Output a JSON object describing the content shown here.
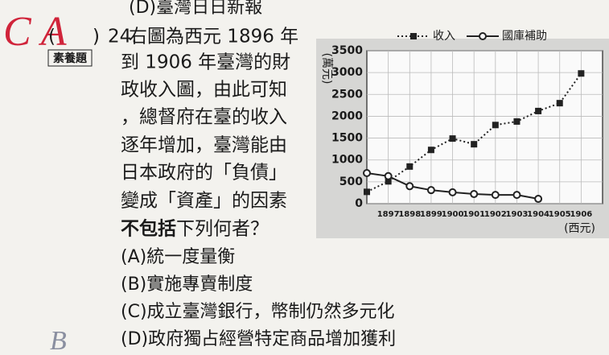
{
  "header": {
    "prev_option": "(D)臺灣日日新報"
  },
  "handwriting": {
    "answer": "C A",
    "note": "B"
  },
  "question": {
    "bracket": "(　　)",
    "number": "24.",
    "tag": "素養題",
    "lines": [
      "右圖為西元 1896 年",
      "到 1906 年臺灣的財",
      "政收入圖，由此可知",
      "，總督府在臺的收入",
      "逐年增加，臺灣能由",
      "日本政府的「負債」",
      "變成「資產」的因素"
    ],
    "emphasis": "不包括",
    "rest": "下列何者？",
    "options": [
      "(A)統一度量衡",
      "(B)實施專賣制度",
      "(C)成立臺灣銀行，幣制仍然多元化",
      "(D)政府獨占經營特定商品增加獲利"
    ]
  },
  "chart_data": {
    "type": "line",
    "y_label": "(萬元)",
    "x_label": "(西元)",
    "x": [
      1896,
      1897,
      1898,
      1899,
      1900,
      1901,
      1902,
      1903,
      1904,
      1905,
      1906
    ],
    "series": [
      {
        "name": "收入",
        "color": "#222222",
        "dash": true,
        "marker": "square",
        "values": [
          270,
          510,
          850,
          1230,
          1490,
          1360,
          1800,
          1880,
          2120,
          2300,
          2980
        ]
      },
      {
        "name": "國庫補助",
        "color": "#222222",
        "dash": false,
        "marker": "circle",
        "values": [
          700,
          630,
          400,
          310,
          260,
          220,
          200,
          200,
          110,
          null,
          null
        ]
      }
    ],
    "xlim": [
      1896,
      1907
    ],
    "xticks": [
      1897,
      1898,
      1899,
      1900,
      1901,
      1902,
      1903,
      1904,
      1905,
      1906
    ],
    "ylim": [
      0,
      3500
    ],
    "yticks": [
      0,
      500,
      1000,
      1500,
      2000,
      2500,
      3000,
      3500
    ],
    "grid": true
  }
}
